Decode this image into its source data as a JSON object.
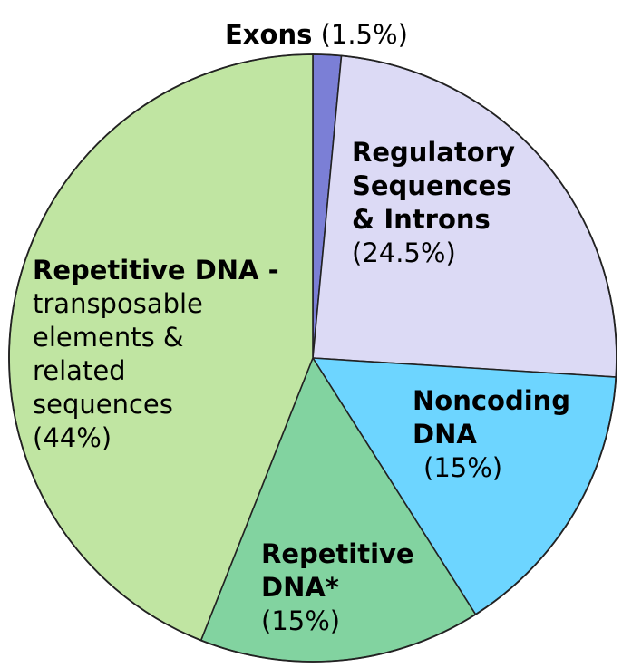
{
  "chart_data": {
    "type": "pie",
    "title": "",
    "slices": [
      {
        "label_bold": "Exons",
        "label_rest": "",
        "value_text": "(1.5%)",
        "value": 1.5,
        "color": "#7b7fd6"
      },
      {
        "label_bold": "Regulatory Sequences & Introns",
        "label_rest": "",
        "value_text": "(24.5%)",
        "value": 24.5,
        "color": "#dcdaf5"
      },
      {
        "label_bold": "Noncoding DNA",
        "label_rest": "",
        "value_text": "(15%)",
        "value": 15,
        "color": "#6dd5ff"
      },
      {
        "label_bold": "Repetitive DNA*",
        "label_rest": "",
        "value_text": "(15%)",
        "value": 15,
        "color": "#82d3a0"
      },
      {
        "label_bold": "Repetitive DNA -",
        "label_rest": "transposable elements & related sequences",
        "value_text": "(44%)",
        "value": 44,
        "color": "#c0e5a2"
      }
    ],
    "start_angle_deg": 0,
    "direction": "clockwise",
    "legend": "none"
  }
}
